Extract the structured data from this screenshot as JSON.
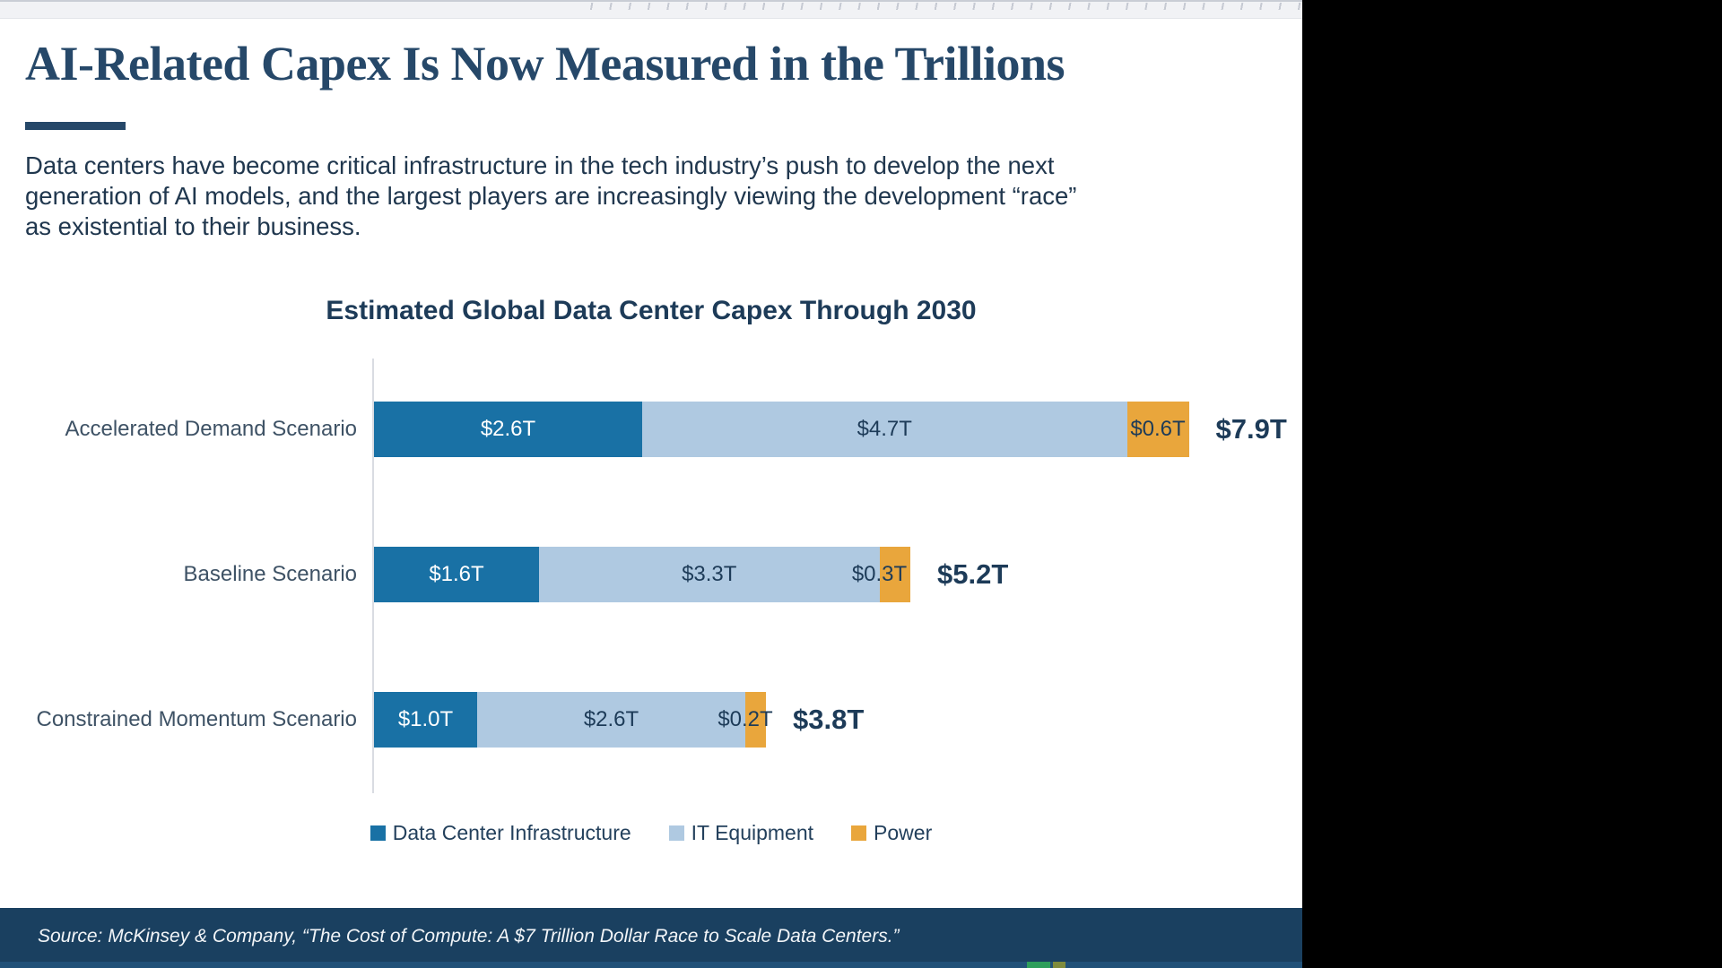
{
  "slide": {
    "title": "AI-Related Capex Is Now Measured in the Trillions",
    "intro_lines": [
      "Data centers have become critical infrastructure in the tech industry’s push to develop the next",
      "generation of AI models, and the largest players are increasingly viewing the development “race”",
      "as existential to their business."
    ],
    "source": "Source: McKinsey & Company, “The Cost of Compute: A $7 Trillion Dollar Race to Scale Data Centers.”"
  },
  "chart_data": {
    "type": "bar",
    "orientation": "horizontal",
    "stacked": true,
    "title": "Estimated Global Data Center Capex Through 2030",
    "unit": "trillions of USD",
    "categories": [
      "Accelerated Demand Scenario",
      "Baseline Scenario",
      "Constrained Momentum Scenario"
    ],
    "series": [
      {
        "name": "Data Center Infrastructure",
        "color": "#1971a5",
        "text_color": "#ffffff",
        "values": [
          2.6,
          1.6,
          1.0
        ],
        "labels": [
          "$2.6T",
          "$1.6T",
          "$1.0T"
        ]
      },
      {
        "name": "IT Equipment",
        "color": "#afc9e1",
        "text_color": "#1d3b58",
        "values": [
          4.7,
          3.3,
          2.6
        ],
        "labels": [
          "$4.7T",
          "$3.3T",
          "$2.6T"
        ]
      },
      {
        "name": "Power",
        "color": "#e9a63c",
        "text_color": "#1d3b58",
        "values": [
          0.6,
          0.3,
          0.2
        ],
        "labels": [
          "$0.6T",
          "$0.3T",
          "$0.2T"
        ]
      }
    ],
    "totals": [
      "$7.9T",
      "$5.2T",
      "$3.8T"
    ],
    "xlim": [
      0,
      7.9
    ],
    "grid": false,
    "legend_position": "bottom"
  },
  "colors": {
    "accent_navy": "#264869",
    "footer_navy": "#1a4060",
    "bar_dark_blue": "#1971a5",
    "bar_light_blue": "#afc9e1",
    "bar_orange": "#e9a63c",
    "scrub_green": "#2e9e5b"
  }
}
